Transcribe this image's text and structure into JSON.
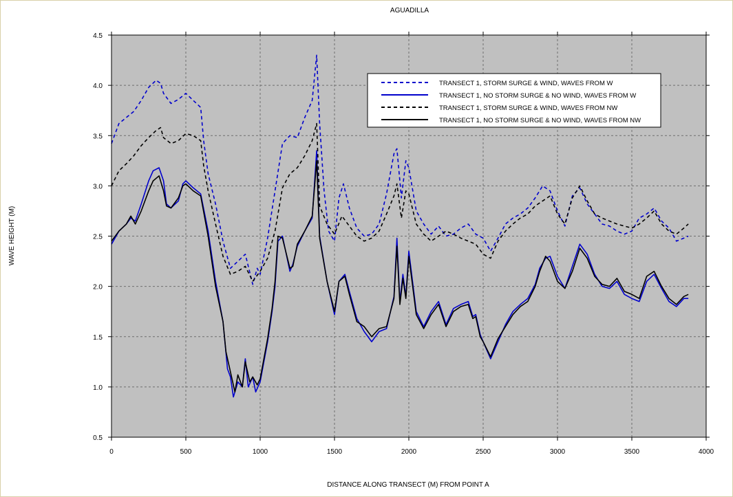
{
  "chart_data": {
    "type": "line",
    "title": "AGUADILLA",
    "xlabel": "DISTANCE ALONG TRANSECT (M) FROM POINT A",
    "ylabel": "WAVE HEIGHT (M)",
    "xlim": [
      0,
      4000
    ],
    "ylim": [
      0.5,
      4.5
    ],
    "xticks": [
      0,
      500,
      1000,
      1500,
      2000,
      2500,
      3000,
      3500,
      4000
    ],
    "yticks": [
      0.5,
      1.0,
      1.5,
      2.0,
      2.5,
      3.0,
      3.5,
      4.0,
      4.5
    ],
    "xtick_labels": [
      "0",
      "500",
      "1000",
      "1500",
      "2000",
      "2500",
      "3000",
      "3500",
      "4000"
    ],
    "ytick_labels": [
      "0.5",
      "1.0",
      "1.5",
      "2.0",
      "2.5",
      "3.0",
      "3.5",
      "4.0",
      "4.5"
    ],
    "grid": true,
    "legend_position": "top-right",
    "colors": {
      "plot_bg": "#c0c0c0",
      "blue": "#0000cc",
      "black": "#000000"
    },
    "series": [
      {
        "name": "TRANSECT 1, STORM SURGE & WIND, WAVES FROM W",
        "color": "#0000cc",
        "dashed": true,
        "x": [
          0,
          50,
          100,
          150,
          200,
          250,
          300,
          330,
          350,
          400,
          450,
          500,
          550,
          600,
          620,
          650,
          700,
          750,
          800,
          850,
          900,
          950,
          980,
          1000,
          1050,
          1100,
          1150,
          1200,
          1250,
          1300,
          1350,
          1380,
          1400,
          1430,
          1460,
          1500,
          1530,
          1560,
          1600,
          1650,
          1700,
          1750,
          1800,
          1850,
          1900,
          1920,
          1950,
          1980,
          2000,
          2050,
          2100,
          2150,
          2200,
          2250,
          2300,
          2350,
          2400,
          2450,
          2500,
          2550,
          2600,
          2650,
          2700,
          2750,
          2800,
          2850,
          2900,
          2950,
          3000,
          3050,
          3100,
          3150,
          3200,
          3250,
          3300,
          3350,
          3400,
          3450,
          3500,
          3550,
          3600,
          3650,
          3700,
          3750,
          3800,
          3850,
          3880
        ],
        "values": [
          3.42,
          3.62,
          3.68,
          3.74,
          3.85,
          3.98,
          4.05,
          4.02,
          3.92,
          3.82,
          3.86,
          3.92,
          3.85,
          3.78,
          3.45,
          3.12,
          2.82,
          2.45,
          2.18,
          2.25,
          2.32,
          2.02,
          2.18,
          2.12,
          2.48,
          2.95,
          3.42,
          3.5,
          3.48,
          3.68,
          3.85,
          4.3,
          3.62,
          2.95,
          2.55,
          2.45,
          2.88,
          3.02,
          2.78,
          2.58,
          2.5,
          2.52,
          2.62,
          2.92,
          3.32,
          3.37,
          2.88,
          3.25,
          3.18,
          2.75,
          2.62,
          2.52,
          2.6,
          2.5,
          2.52,
          2.58,
          2.62,
          2.52,
          2.48,
          2.35,
          2.48,
          2.62,
          2.68,
          2.72,
          2.78,
          2.88,
          3.0,
          2.95,
          2.75,
          2.6,
          2.9,
          2.98,
          2.82,
          2.72,
          2.62,
          2.6,
          2.55,
          2.52,
          2.55,
          2.68,
          2.72,
          2.78,
          2.65,
          2.58,
          2.45,
          2.48,
          2.5
        ]
      },
      {
        "name": "TRANSECT 1, NO STORM SURGE & NO WIND, WAVES FROM W",
        "color": "#0000cc",
        "dashed": false,
        "x": [
          0,
          50,
          100,
          130,
          160,
          200,
          250,
          280,
          320,
          350,
          370,
          400,
          450,
          480,
          500,
          550,
          600,
          650,
          700,
          750,
          780,
          800,
          820,
          850,
          880,
          900,
          920,
          950,
          970,
          1000,
          1050,
          1080,
          1100,
          1120,
          1150,
          1200,
          1220,
          1250,
          1300,
          1350,
          1380,
          1400,
          1450,
          1500,
          1530,
          1570,
          1600,
          1650,
          1700,
          1750,
          1800,
          1850,
          1900,
          1920,
          1940,
          1960,
          1980,
          2000,
          2050,
          2100,
          2150,
          2200,
          2250,
          2300,
          2350,
          2400,
          2430,
          2450,
          2480,
          2500,
          2550,
          2600,
          2650,
          2700,
          2750,
          2800,
          2850,
          2880,
          2920,
          2950,
          3000,
          3050,
          3100,
          3150,
          3200,
          3250,
          3300,
          3350,
          3400,
          3450,
          3500,
          3550,
          3600,
          3650,
          3700,
          3750,
          3800,
          3850,
          3880
        ],
        "values": [
          2.42,
          2.55,
          2.62,
          2.68,
          2.65,
          2.82,
          3.05,
          3.15,
          3.18,
          3.05,
          2.82,
          2.78,
          2.85,
          3.02,
          3.05,
          2.98,
          2.92,
          2.55,
          2.05,
          1.65,
          1.18,
          1.1,
          0.9,
          1.05,
          1.0,
          1.28,
          1.0,
          1.1,
          0.95,
          1.05,
          1.45,
          1.75,
          2.0,
          2.45,
          2.5,
          2.15,
          2.22,
          2.4,
          2.55,
          2.68,
          3.35,
          2.5,
          2.05,
          1.72,
          2.05,
          2.12,
          1.95,
          1.68,
          1.55,
          1.45,
          1.55,
          1.58,
          1.9,
          2.48,
          1.85,
          2.12,
          1.9,
          2.35,
          1.75,
          1.6,
          1.75,
          1.85,
          1.62,
          1.78,
          1.82,
          1.85,
          1.7,
          1.72,
          1.52,
          1.45,
          1.28,
          1.45,
          1.62,
          1.75,
          1.82,
          1.88,
          2.02,
          2.18,
          2.28,
          2.3,
          2.1,
          1.98,
          2.2,
          2.42,
          2.32,
          2.12,
          2.0,
          1.98,
          2.05,
          1.92,
          1.88,
          1.85,
          2.05,
          2.12,
          1.98,
          1.85,
          1.8,
          1.88,
          1.88
        ]
      },
      {
        "name": "TRANSECT 1, STORM SURGE & WIND, WAVES FROM NW",
        "color": "#000000",
        "dashed": true,
        "x": [
          0,
          50,
          100,
          150,
          200,
          250,
          300,
          330,
          350,
          400,
          450,
          500,
          550,
          600,
          620,
          650,
          700,
          750,
          800,
          850,
          900,
          950,
          1000,
          1050,
          1100,
          1150,
          1200,
          1250,
          1300,
          1350,
          1380,
          1400,
          1450,
          1500,
          1550,
          1600,
          1650,
          1700,
          1750,
          1800,
          1850,
          1900,
          1920,
          1950,
          1980,
          2000,
          2050,
          2100,
          2150,
          2200,
          2250,
          2300,
          2350,
          2400,
          2450,
          2500,
          2550,
          2600,
          2650,
          2700,
          2750,
          2800,
          2850,
          2900,
          2950,
          3000,
          3050,
          3100,
          3150,
          3200,
          3250,
          3300,
          3350,
          3400,
          3450,
          3500,
          3550,
          3600,
          3650,
          3700,
          3750,
          3800,
          3850,
          3880
        ],
        "values": [
          3.0,
          3.15,
          3.22,
          3.3,
          3.4,
          3.48,
          3.55,
          3.58,
          3.48,
          3.42,
          3.45,
          3.52,
          3.5,
          3.45,
          3.2,
          2.95,
          2.62,
          2.3,
          2.12,
          2.15,
          2.2,
          2.05,
          2.15,
          2.28,
          2.55,
          2.98,
          3.12,
          3.18,
          3.3,
          3.45,
          3.62,
          2.8,
          2.62,
          2.52,
          2.7,
          2.6,
          2.5,
          2.45,
          2.48,
          2.55,
          2.72,
          2.9,
          3.02,
          2.68,
          2.95,
          2.92,
          2.62,
          2.52,
          2.45,
          2.5,
          2.55,
          2.52,
          2.48,
          2.45,
          2.42,
          2.32,
          2.28,
          2.45,
          2.55,
          2.62,
          2.68,
          2.72,
          2.8,
          2.85,
          2.9,
          2.72,
          2.62,
          2.88,
          3.0,
          2.85,
          2.72,
          2.68,
          2.65,
          2.62,
          2.6,
          2.58,
          2.62,
          2.68,
          2.75,
          2.62,
          2.55,
          2.52,
          2.58,
          2.62
        ]
      },
      {
        "name": "TRANSECT 1, NO STORM SURGE & NO WIND, WAVES FROM NW",
        "color": "#000000",
        "dashed": false,
        "x": [
          0,
          50,
          100,
          130,
          160,
          200,
          250,
          280,
          320,
          350,
          370,
          400,
          450,
          480,
          500,
          550,
          600,
          650,
          700,
          750,
          770,
          800,
          830,
          850,
          880,
          900,
          930,
          950,
          980,
          1000,
          1050,
          1080,
          1100,
          1120,
          1150,
          1200,
          1220,
          1250,
          1300,
          1350,
          1380,
          1400,
          1450,
          1500,
          1530,
          1570,
          1600,
          1650,
          1700,
          1750,
          1800,
          1850,
          1900,
          1920,
          1940,
          1960,
          1980,
          2000,
          2050,
          2100,
          2150,
          2200,
          2250,
          2300,
          2350,
          2400,
          2430,
          2450,
          2480,
          2500,
          2550,
          2600,
          2650,
          2700,
          2750,
          2800,
          2850,
          2880,
          2920,
          2950,
          3000,
          3050,
          3100,
          3150,
          3200,
          3250,
          3300,
          3350,
          3400,
          3450,
          3500,
          3550,
          3600,
          3650,
          3700,
          3750,
          3800,
          3850,
          3880
        ],
        "values": [
          2.45,
          2.55,
          2.62,
          2.7,
          2.62,
          2.75,
          2.95,
          3.05,
          3.1,
          2.95,
          2.8,
          2.78,
          2.88,
          3.0,
          3.02,
          2.95,
          2.9,
          2.5,
          2.0,
          1.65,
          1.35,
          1.15,
          0.95,
          1.12,
          1.0,
          1.25,
          1.05,
          1.1,
          1.02,
          1.08,
          1.48,
          1.78,
          2.05,
          2.5,
          2.48,
          2.18,
          2.2,
          2.42,
          2.55,
          2.7,
          3.25,
          2.48,
          2.05,
          1.75,
          2.05,
          2.1,
          1.92,
          1.65,
          1.6,
          1.5,
          1.58,
          1.6,
          1.88,
          2.4,
          1.82,
          2.08,
          1.88,
          2.3,
          1.72,
          1.58,
          1.72,
          1.82,
          1.6,
          1.75,
          1.8,
          1.82,
          1.68,
          1.7,
          1.5,
          1.45,
          1.3,
          1.48,
          1.6,
          1.72,
          1.8,
          1.85,
          2.0,
          2.15,
          2.3,
          2.25,
          2.05,
          1.98,
          2.15,
          2.38,
          2.28,
          2.1,
          2.02,
          2.0,
          2.08,
          1.95,
          1.92,
          1.88,
          2.1,
          2.15,
          2.0,
          1.88,
          1.82,
          1.9,
          1.92
        ]
      }
    ]
  }
}
